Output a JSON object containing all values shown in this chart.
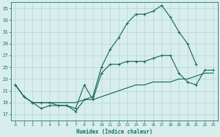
{
  "xlabel": "Humidex (Indice chaleur)",
  "bg_color": "#d7eeec",
  "grid_color": "#b8d8d4",
  "line_color": "#1a6b5a",
  "xlim": [
    -0.5,
    23.5
  ],
  "ylim": [
    16,
    36
  ],
  "xticks": [
    0,
    1,
    2,
    3,
    4,
    5,
    6,
    7,
    8,
    9,
    10,
    11,
    12,
    13,
    14,
    15,
    16,
    17,
    18,
    19,
    20,
    21,
    22,
    23
  ],
  "yticks": [
    17,
    19,
    21,
    23,
    25,
    27,
    29,
    31,
    33,
    35
  ],
  "line1_x": [
    0,
    1,
    2,
    3,
    4,
    5,
    6,
    7,
    8,
    9,
    10,
    11,
    12,
    13,
    14,
    15,
    16,
    17,
    18,
    19,
    20,
    21
  ],
  "line1_y": [
    22,
    20,
    19,
    19,
    19,
    18.5,
    18.5,
    17.5,
    19.5,
    20,
    25,
    28,
    30,
    32.5,
    34,
    34,
    34.5,
    35.5,
    33.5,
    31,
    29,
    25.5
  ],
  "line2_x": [
    0,
    1,
    2,
    3,
    4,
    5,
    6,
    7,
    8,
    9,
    10,
    11,
    12,
    13,
    14,
    15,
    16,
    17,
    18,
    19,
    20,
    21,
    22,
    23
  ],
  "line2_y": [
    22,
    20,
    19,
    18,
    18.5,
    18.5,
    18.5,
    18,
    22,
    19.5,
    24,
    25.5,
    25.5,
    26,
    26,
    26,
    26.5,
    27,
    27,
    24,
    22.5,
    22,
    24.5,
    24.5
  ],
  "line3_x": [
    0,
    1,
    2,
    3,
    4,
    5,
    6,
    7,
    8,
    9,
    10,
    11,
    12,
    13,
    14,
    15,
    16,
    17,
    18,
    19,
    20,
    21,
    22,
    23
  ],
  "line3_y": [
    22,
    20,
    19,
    19,
    19,
    19,
    19,
    19,
    19.5,
    19.5,
    20,
    20.5,
    21,
    21.5,
    22,
    22,
    22.5,
    22.5,
    22.5,
    23,
    23,
    23.5,
    24,
    24
  ]
}
